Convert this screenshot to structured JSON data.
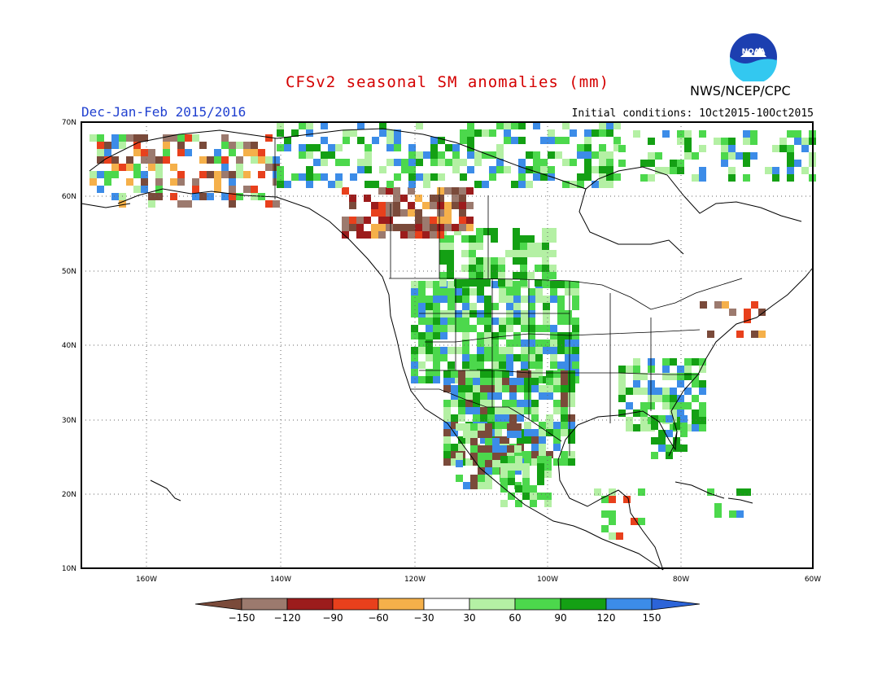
{
  "title": "CFSv2 seasonal SM anomalies (mm)",
  "season": "Dec-Jan-Feb 2015/2016",
  "initial_conditions": "Initial conditions: 1Oct2015-10Oct2015",
  "agency": "NWS/NCEP/CPC",
  "logo_text": "NOAA",
  "lat_labels": [
    "70N",
    "60N",
    "50N",
    "40N",
    "30N",
    "20N",
    "10N"
  ],
  "lon_labels": [
    "160W",
    "140W",
    "120W",
    "100W",
    "80W",
    "60W"
  ],
  "colorbar": {
    "colors": [
      "#7a4a3a",
      "#9c7a6e",
      "#9c1c1c",
      "#e8401c",
      "#f5b04a",
      "#ffffff",
      "#b4f0a4",
      "#4cd84c",
      "#14a014",
      "#3c8ce8",
      "#2c64d8"
    ],
    "labels": [
      "-150",
      "-120",
      "-90",
      "-60",
      "-30",
      "30",
      "60",
      "90",
      "120",
      "150"
    ]
  },
  "palette": {
    "brown": "#7a4a3a",
    "lbrown": "#9c7a6e",
    "dred": "#9c1c1c",
    "red": "#e8401c",
    "orange": "#f5b04a",
    "lgreen": "#b4f0a4",
    "green": "#4cd84c",
    "dgreen": "#14a014",
    "blue": "#3c8ce8"
  }
}
